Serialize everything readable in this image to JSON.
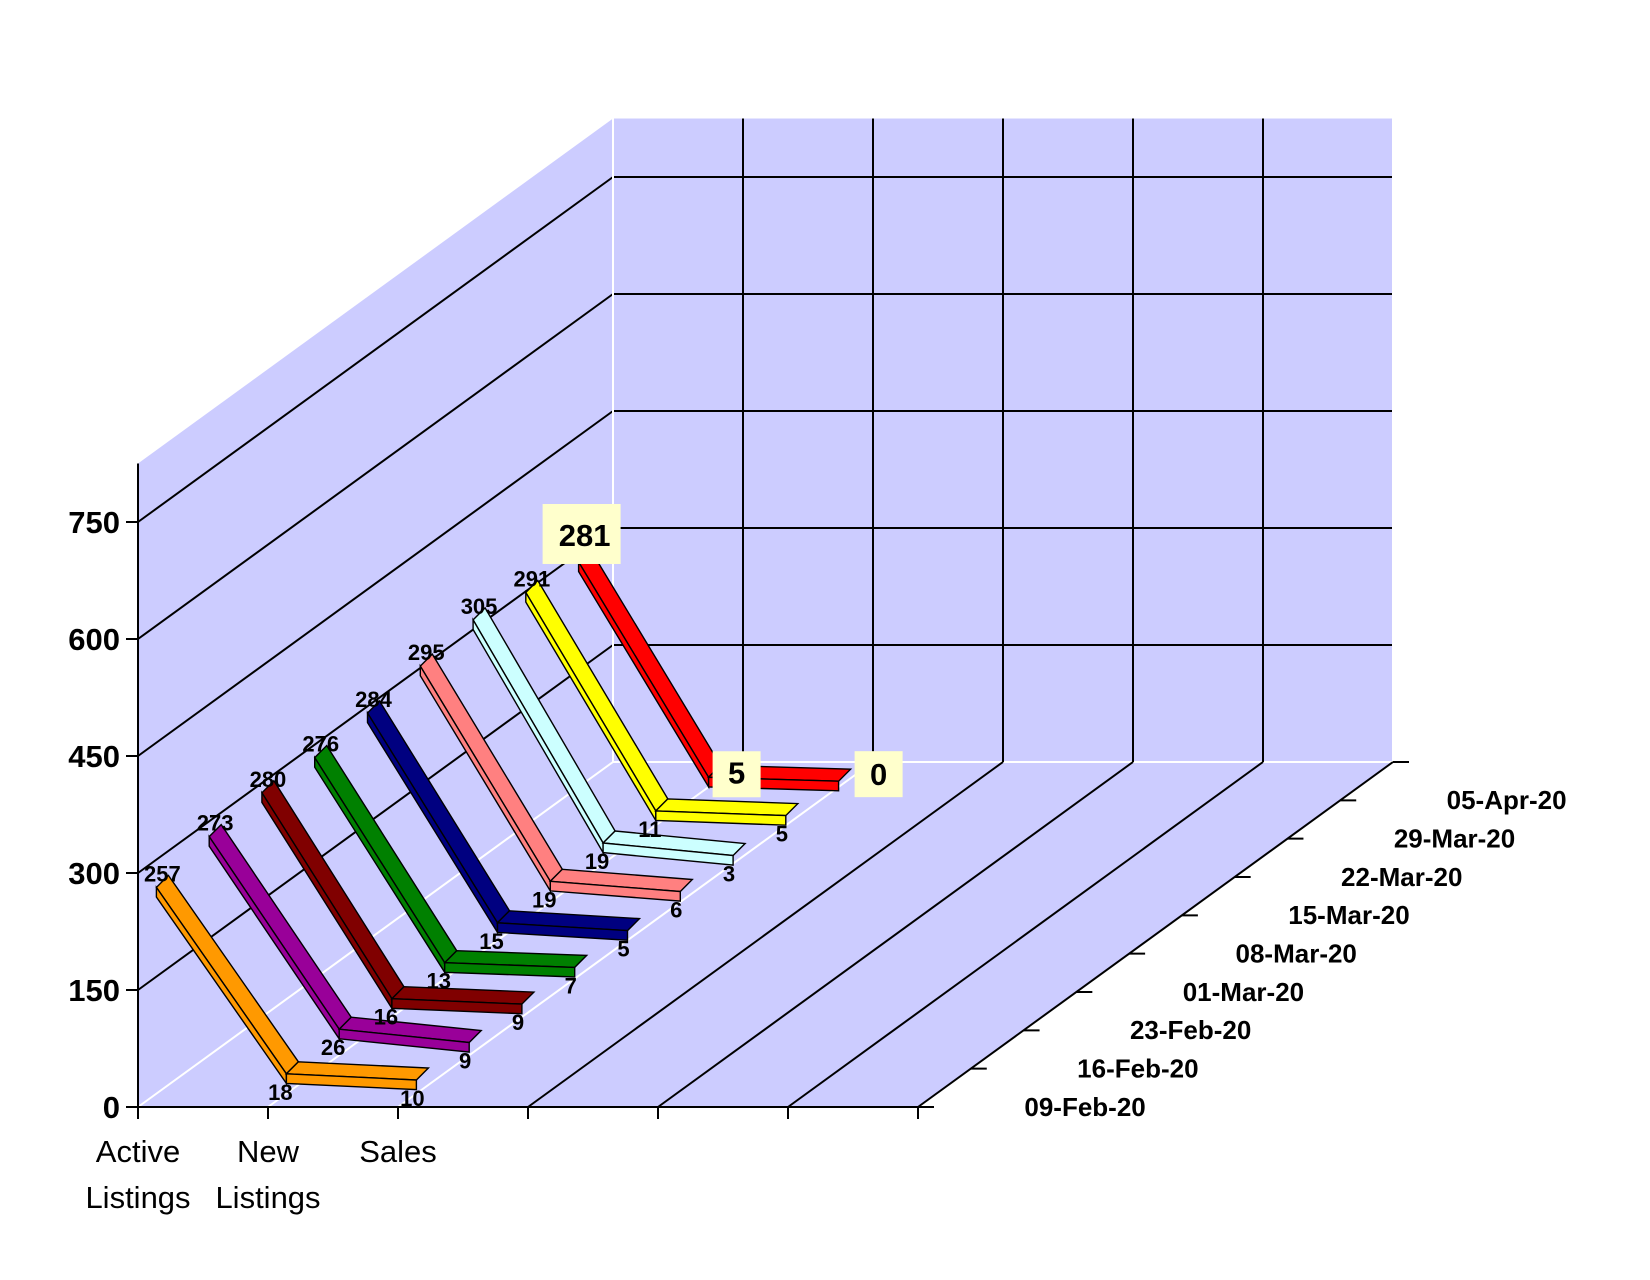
{
  "chart_data": {
    "type": "line",
    "style": "3d",
    "categories": [
      "Active Listings",
      "New Listings",
      "Sales"
    ],
    "series": [
      {
        "name": "09-Feb-20",
        "values": [
          257,
          18,
          10
        ],
        "color": "#FF9900"
      },
      {
        "name": "16-Feb-20",
        "values": [
          273,
          26,
          9
        ],
        "color": "#990099"
      },
      {
        "name": "23-Feb-20",
        "values": [
          280,
          16,
          9
        ],
        "color": "#800000"
      },
      {
        "name": "01-Mar-20",
        "values": [
          276,
          13,
          7
        ],
        "color": "#008000"
      },
      {
        "name": "08-Mar-20",
        "values": [
          284,
          15,
          5
        ],
        "color": "#000080"
      },
      {
        "name": "15-Mar-20",
        "values": [
          295,
          19,
          6
        ],
        "color": "#FF8080"
      },
      {
        "name": "22-Mar-20",
        "values": [
          305,
          19,
          3
        ],
        "color": "#CCFFFF"
      },
      {
        "name": "29-Mar-20",
        "values": [
          291,
          11,
          5
        ],
        "color": "#FFFF00"
      },
      {
        "name": "05-Apr-20",
        "values": [
          281,
          5,
          0
        ],
        "color": "#FF0000"
      }
    ],
    "highlighted_series": "05-Apr-20",
    "yticks": [
      "0",
      "150",
      "300",
      "450",
      "600",
      "750"
    ],
    "ylim": [
      0,
      825
    ],
    "grid": true,
    "legend": "depth axis labels (right)",
    "colors": {
      "wall": "#CCCCFF",
      "grid": "#000000",
      "label_box": "#FFFFCC"
    }
  }
}
